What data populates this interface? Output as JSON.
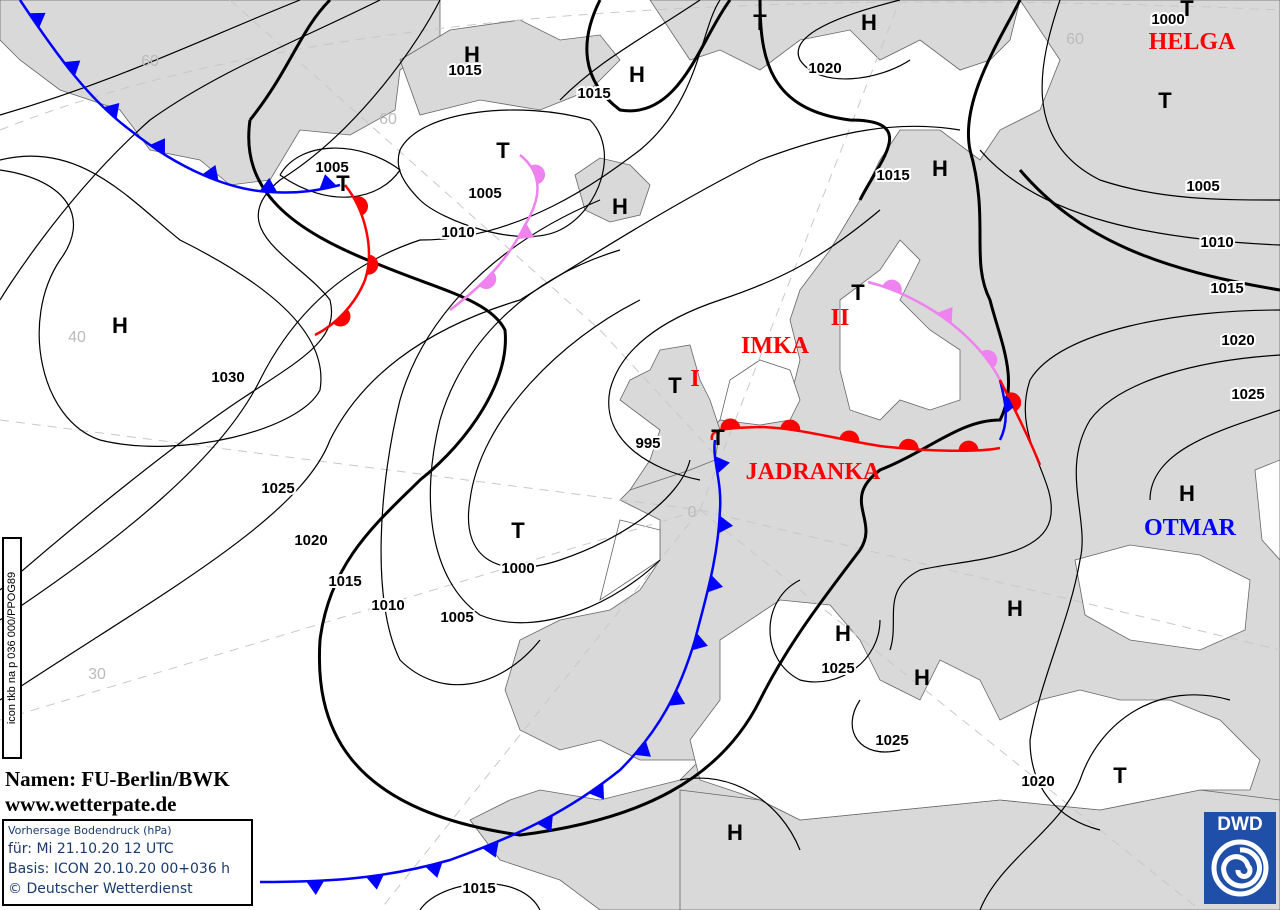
{
  "map": {
    "land_color": "#d9d9d9",
    "warm_front_color": "#ff0000",
    "cold_front_color": "#0000ff",
    "occlusion_color": "#ee82ee",
    "pressure_centers": [
      "H",
      "H",
      "H",
      "H",
      "H",
      "T",
      "T",
      "T",
      "T",
      "T",
      "T",
      "T",
      "T",
      "T",
      "H",
      "H",
      "H",
      "H",
      "T",
      "H",
      "H",
      "T"
    ],
    "isobar_labels": [
      "1015",
      "1015",
      "1020",
      "1000",
      "1005",
      "1005",
      "1010",
      "1015",
      "1005",
      "1010",
      "1015",
      "1020",
      "1025",
      "1030",
      "995",
      "1025",
      "1020",
      "1015",
      "1010",
      "1005",
      "1000",
      "1025",
      "1025",
      "1020",
      "1015"
    ],
    "grid_labels": [
      "60",
      "60",
      "40",
      "30",
      "0",
      "60"
    ],
    "system_names": {
      "helga": "HELGA",
      "imka": "IMKA",
      "imka_2": "II",
      "imka_1": "I",
      "jadranka": "JADRANKA",
      "otmar": "OTMAR"
    }
  },
  "credits": {
    "names": "Namen: FU-Berlin/BWK",
    "website": "www.wetterpate.de"
  },
  "info": {
    "title": "Vorhersage Bodendruck (hPa)",
    "valid": "für:  Mi 21.10.20  12 UTC",
    "basis": "Basis: ICON  20.10.20 00+036 h",
    "copyright": "© Deutscher Wetterdienst"
  },
  "product_code": "icon tkb na p 036 000/PPOG89",
  "logo": "DWD"
}
